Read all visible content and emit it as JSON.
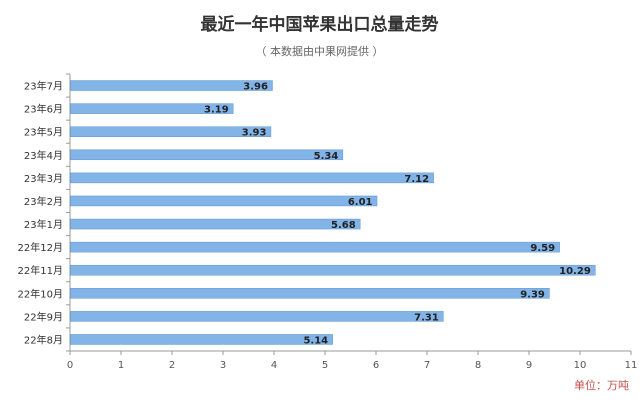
{
  "title": "最近一年中国苹果出口总量走势",
  "subtitle": "（ 本数据由中果网提供 ）",
  "unit_label": "单位：万吨",
  "colors": {
    "bar": "#82b4e8",
    "bar_stroke": "#5f95cf",
    "axis": "#9a9a9a",
    "grid": "#e6e6e6",
    "unit": "#c0504d"
  },
  "chart_data": {
    "type": "bar",
    "orientation": "horizontal",
    "title": "最近一年中国苹果出口总量走势",
    "subtitle": "（ 本数据由中果网提供 ）",
    "categories": [
      "23年7月",
      "23年6月",
      "23年5月",
      "23年4月",
      "23年3月",
      "23年2月",
      "23年1月",
      "22年12月",
      "22年11月",
      "22年10月",
      "22年9月",
      "22年8月"
    ],
    "values": [
      3.96,
      3.19,
      3.93,
      5.34,
      7.12,
      6.01,
      5.68,
      9.59,
      10.29,
      9.39,
      7.31,
      5.14
    ],
    "xlim": [
      0,
      11
    ],
    "x_ticks": [
      0,
      1,
      2,
      3,
      4,
      5,
      6,
      7,
      8,
      9,
      10,
      11
    ],
    "unit": "单位：万吨",
    "grid": false
  }
}
